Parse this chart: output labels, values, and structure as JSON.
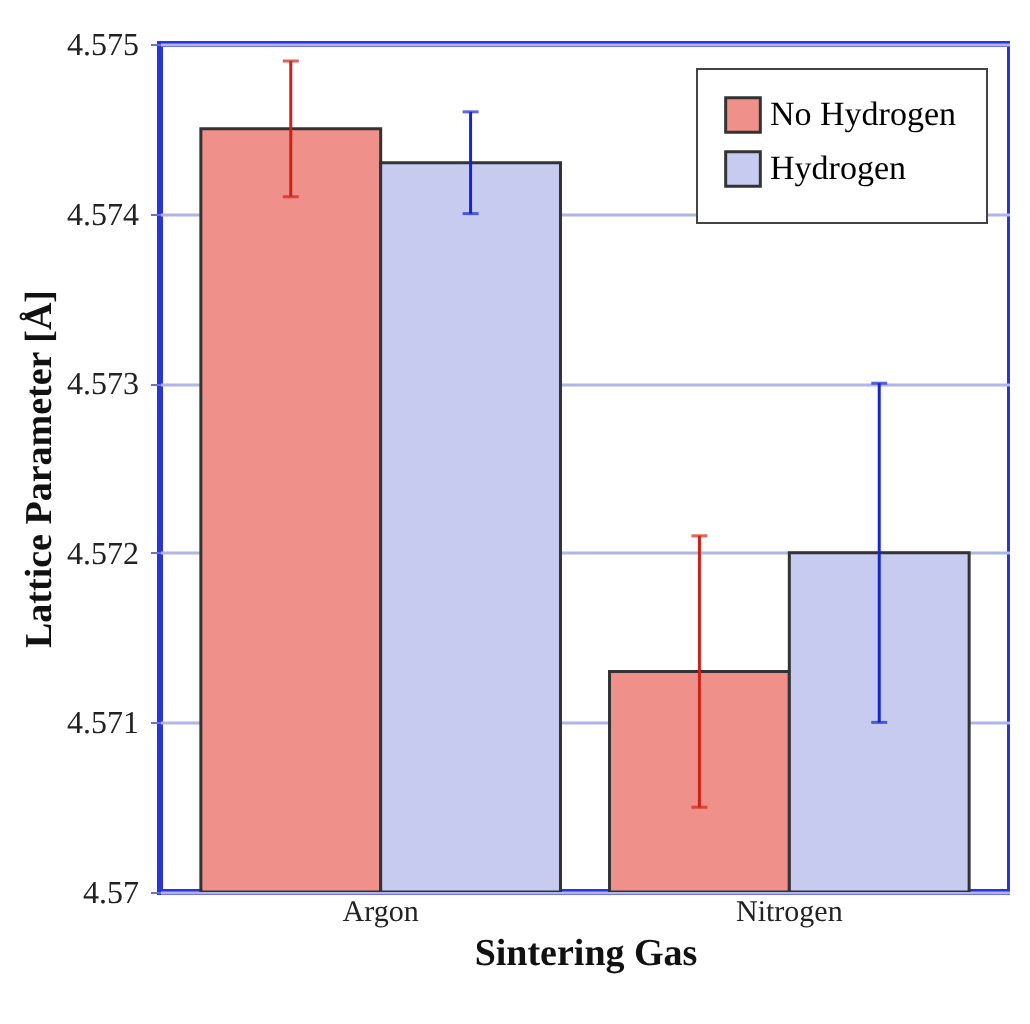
{
  "chart_data": {
    "type": "bar",
    "xlabel": "Sintering Gas",
    "ylabel": "Lattice Parameter [Å]",
    "categories": [
      "Argon",
      "Nitrogen"
    ],
    "series": [
      {
        "name": "No Hydrogen",
        "color": "#f0908a",
        "values": [
          4.5745,
          4.5713
        ],
        "errors": [
          0.0004,
          0.0008
        ]
      },
      {
        "name": "Hydrogen",
        "color": "#c8cbf0",
        "values": [
          4.5743,
          4.572
        ],
        "errors": [
          0.0003,
          0.001
        ]
      }
    ],
    "ylim": [
      4.57,
      4.575
    ],
    "yticks": [
      4.57,
      4.571,
      4.572,
      4.573,
      4.574,
      4.575
    ],
    "grid": "y",
    "legend": "top right"
  }
}
